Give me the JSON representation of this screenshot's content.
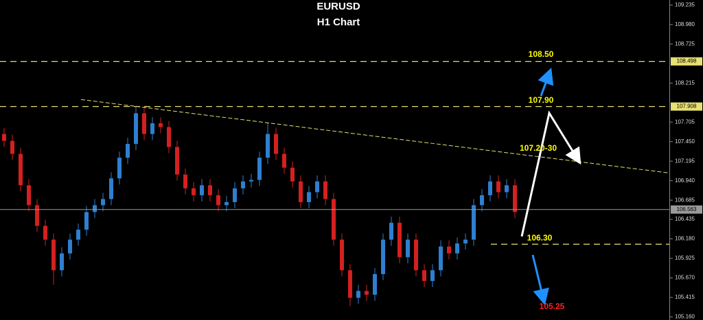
{
  "chart_data": {
    "type": "candlestick",
    "title": "EURUSD",
    "subtitle": "H1 Chart",
    "up_color": "#2f7fd0",
    "down_color": "#d42020",
    "xlim": [
      -0.5,
      80.75
    ],
    "ylim": [
      105.12,
      109.3
    ],
    "yticks": [
      109.235,
      {
        "value": 108.98,
        "label": "108.980"
      },
      108.725,
      108.215,
      107.705,
      {
        "value": 107.45,
        "label": "107.450"
      },
      107.195,
      {
        "value": 106.94,
        "label": "106.940"
      },
      106.685,
      106.435,
      {
        "value": 106.18,
        "label": "106.180"
      },
      105.925,
      {
        "value": 105.67,
        "label": "105.670"
      },
      105.415,
      {
        "value": 105.16,
        "label": "105.160"
      }
    ],
    "open": [
      107.55,
      107.46,
      107.29,
      106.88,
      106.62,
      106.35,
      106.17,
      105.77,
      105.99,
      106.17,
      106.3,
      106.53,
      106.62,
      106.7,
      106.97,
      107.24,
      107.42,
      107.82,
      107.55,
      107.69,
      107.64,
      107.38,
      107.02,
      106.84,
      106.75,
      106.88,
      106.75,
      106.62,
      106.66,
      106.84,
      106.93,
      106.95,
      107.24,
      107.55,
      107.29,
      107.11,
      106.93,
      106.66,
      106.79,
      106.93,
      106.7,
      106.17,
      105.77,
      105.41,
      105.5,
      105.45,
      105.72,
      106.17,
      106.39,
      105.94,
      106.17,
      105.77,
      105.63,
      105.77,
      106.08,
      105.99,
      106.12,
      106.17,
      106.62,
      106.75,
      106.93,
      106.79,
      106.88
    ],
    "high": [
      107.63,
      107.54,
      107.37,
      106.96,
      106.7,
      106.43,
      106.25,
      106.07,
      106.25,
      106.38,
      106.61,
      106.7,
      106.78,
      107.05,
      107.32,
      107.5,
      107.9,
      107.9,
      107.77,
      107.77,
      107.72,
      107.46,
      107.1,
      106.92,
      106.96,
      106.96,
      106.83,
      106.74,
      106.92,
      107.01,
      107.03,
      107.32,
      107.7,
      107.63,
      107.37,
      107.19,
      107.01,
      106.87,
      107.01,
      107.01,
      106.78,
      106.25,
      105.85,
      105.58,
      105.58,
      105.8,
      106.25,
      106.47,
      106.47,
      106.25,
      106.25,
      105.85,
      105.85,
      106.16,
      106.16,
      106.2,
      106.25,
      106.7,
      106.83,
      107.01,
      107.01,
      106.96,
      106.96
    ],
    "low": [
      107.38,
      107.21,
      106.8,
      106.54,
      106.27,
      106.09,
      105.58,
      105.69,
      105.91,
      106.09,
      106.22,
      106.45,
      106.54,
      106.62,
      106.89,
      107.16,
      107.34,
      107.47,
      107.47,
      107.56,
      107.3,
      106.94,
      106.76,
      106.67,
      106.67,
      106.67,
      106.54,
      106.54,
      106.58,
      106.76,
      106.85,
      106.87,
      107.16,
      107.21,
      107.03,
      106.85,
      106.58,
      106.58,
      106.71,
      106.62,
      106.09,
      105.69,
      105.3,
      105.33,
      105.37,
      105.37,
      105.64,
      106.09,
      105.86,
      105.86,
      105.69,
      105.55,
      105.55,
      105.69,
      105.91,
      105.91,
      106.04,
      106.09,
      106.54,
      106.67,
      106.71,
      106.71,
      106.45
    ],
    "close": [
      107.46,
      107.29,
      106.88,
      106.62,
      106.35,
      106.17,
      105.77,
      105.99,
      106.17,
      106.3,
      106.53,
      106.62,
      106.7,
      106.97,
      107.24,
      107.42,
      107.82,
      107.55,
      107.69,
      107.64,
      107.38,
      107.02,
      106.84,
      106.75,
      106.88,
      106.75,
      106.62,
      106.66,
      106.84,
      106.93,
      106.95,
      107.24,
      107.55,
      107.29,
      107.11,
      106.93,
      106.66,
      106.79,
      106.93,
      106.7,
      106.17,
      105.77,
      105.41,
      105.5,
      105.45,
      105.72,
      106.17,
      106.39,
      105.94,
      106.17,
      105.77,
      105.63,
      105.77,
      106.08,
      105.99,
      106.12,
      106.17,
      106.62,
      106.75,
      106.93,
      106.79,
      106.88,
      106.53
    ],
    "levels": [
      {
        "value": 108.498,
        "label": "108.498",
        "color": "#e8e070"
      },
      {
        "value": 107.908,
        "label": "107.908",
        "color": "#e8e070"
      },
      {
        "value": 106.563,
        "label": "106.563",
        "color": "#9a9a9a"
      }
    ],
    "support_line": {
      "value": 106.11,
      "color": "#e8e070"
    },
    "trendline": {
      "x": [
        9.33,
        80.75
      ],
      "y": [
        108.0,
        107.04
      ],
      "color": "#e8e070"
    },
    "annotations": [
      {
        "text": "108.50",
        "color": "#ffff00"
      },
      {
        "text": "107.90",
        "color": "#ffff00"
      },
      {
        "text": "107.20-30",
        "color": "#ffff00"
      },
      {
        "text": "106.30",
        "color": "#ffff00"
      },
      {
        "text": "105.25",
        "color": "#ff2020"
      }
    ]
  }
}
